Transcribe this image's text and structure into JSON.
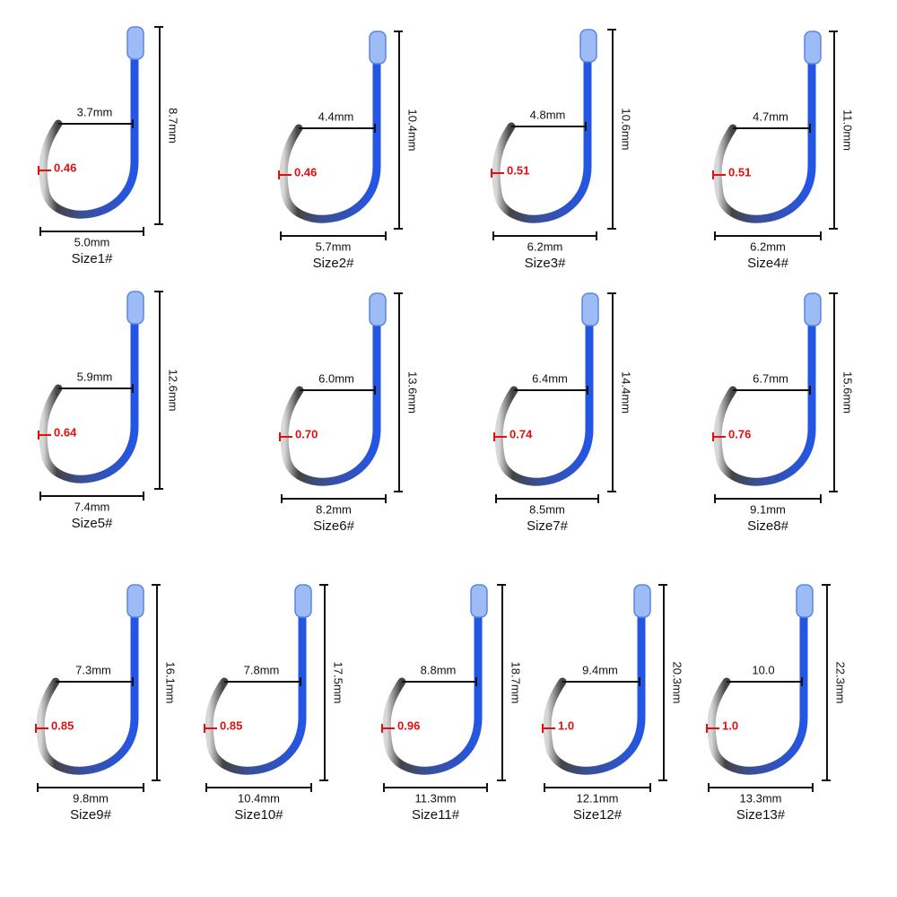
{
  "hooks": [
    {
      "size": "Size1#",
      "gap": "3.7mm",
      "width": "5.0mm",
      "length": "8.7mm",
      "wire": "0.46"
    },
    {
      "size": "Size2#",
      "gap": "4.4mm",
      "width": "5.7mm",
      "length": "10.4mm",
      "wire": "0.46"
    },
    {
      "size": "Size3#",
      "gap": "4.8mm",
      "width": "6.2mm",
      "length": "10.6mm",
      "wire": "0.51"
    },
    {
      "size": "Size4#",
      "gap": "4.7mm",
      "width": "6.2mm",
      "length": "11.0mm",
      "wire": "0.51"
    },
    {
      "size": "Size5#",
      "gap": "5.9mm",
      "width": "7.4mm",
      "length": "12.6mm",
      "wire": "0.64"
    },
    {
      "size": "Size6#",
      "gap": "6.0mm",
      "width": "8.2mm",
      "length": "13.6mm",
      "wire": "0.70"
    },
    {
      "size": "Size7#",
      "gap": "6.4mm",
      "width": "8.5mm",
      "length": "14.4mm",
      "wire": "0.74"
    },
    {
      "size": "Size8#",
      "gap": "6.7mm",
      "width": "9.1mm",
      "length": "15.6mm",
      "wire": "0.76"
    },
    {
      "size": "Size9#",
      "gap": "7.3mm",
      "width": "9.8mm",
      "length": "16.1mm",
      "wire": "0.85"
    },
    {
      "size": "Size10#",
      "gap": "7.8mm",
      "width": "10.4mm",
      "length": "17.5mm",
      "wire": "0.85"
    },
    {
      "size": "Size11#",
      "gap": "8.8mm",
      "width": "11.3mm",
      "length": "18.7mm",
      "wire": "0.96"
    },
    {
      "size": "Size12#",
      "gap": "9.4mm",
      "width": "12.1mm",
      "length": "20.3mm",
      "wire": "1.0"
    },
    {
      "size": "Size13#",
      "gap": "10.0",
      "width": "13.3mm",
      "length": "22.3mm",
      "wire": "1.0"
    }
  ]
}
